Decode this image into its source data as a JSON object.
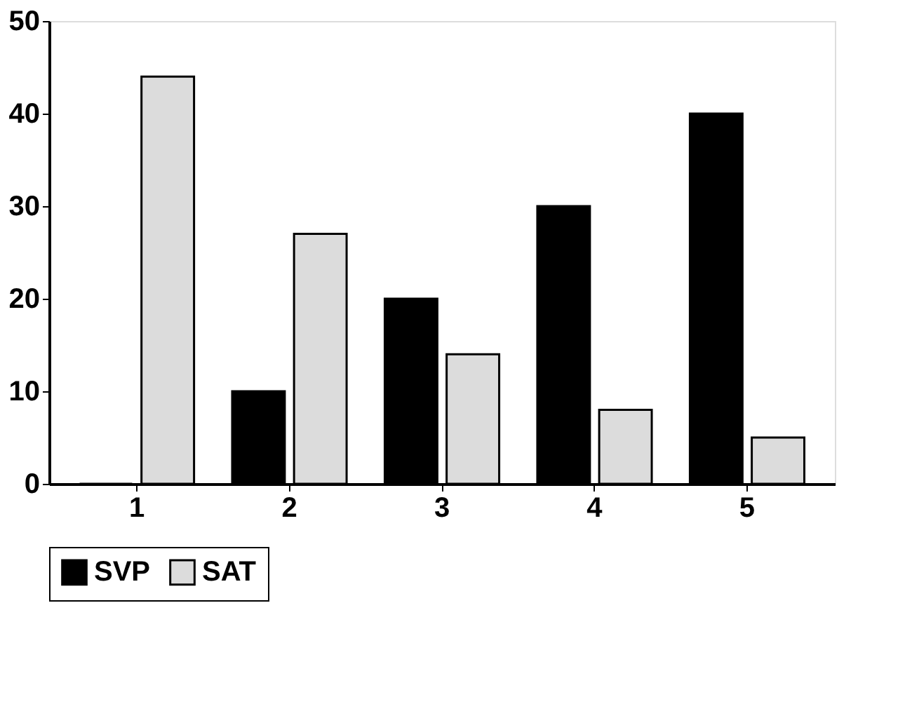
{
  "chart_data": {
    "type": "bar",
    "categories": [
      "1",
      "2",
      "3",
      "4",
      "5"
    ],
    "series": [
      {
        "name": "SVP",
        "color": "#000000",
        "values": [
          0,
          10,
          20,
          30,
          40
        ]
      },
      {
        "name": "SAT",
        "color": "#dcdcdc",
        "values": [
          44,
          27,
          14,
          8,
          5
        ]
      }
    ],
    "ylim": [
      0,
      50
    ],
    "yticks": [
      0,
      10,
      20,
      30,
      40,
      50
    ],
    "grid": false,
    "legend": "bottom"
  }
}
